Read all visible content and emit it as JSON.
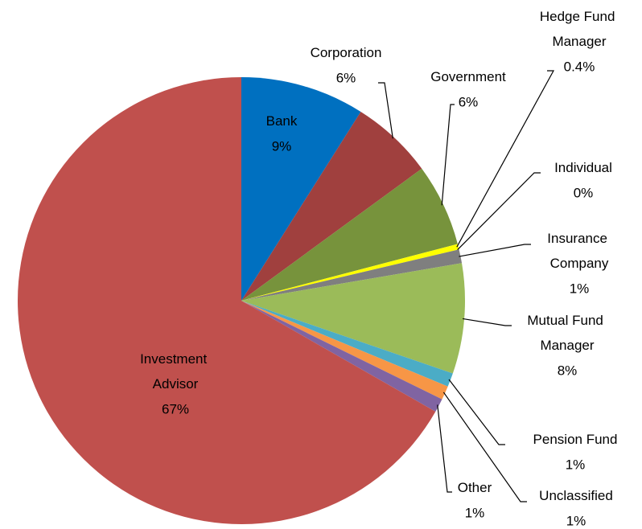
{
  "chart_data": {
    "type": "pie",
    "categories": [
      "Bank",
      "Corporation",
      "Government",
      "Hedge Fund Manager",
      "Individual",
      "Insurance Company",
      "Mutual Fund Manager",
      "Pension Fund",
      "Unclassified",
      "Other",
      "Investment Advisor"
    ],
    "values": [
      9,
      6,
      6,
      0.4,
      0,
      1,
      8,
      1,
      1,
      1,
      67
    ],
    "value_labels": [
      "9%",
      "6%",
      "6%",
      "0.4%",
      "0%",
      "1%",
      "8%",
      "1%",
      "1%",
      "1%",
      "67%"
    ],
    "colors": [
      "#0070c0",
      "#a0403e",
      "#77933c",
      "#ffff00",
      "#4f81bd",
      "#7f7f7f",
      "#9bbb59",
      "#4bacc6",
      "#f79646",
      "#8064a2",
      "#c0504d"
    ]
  }
}
